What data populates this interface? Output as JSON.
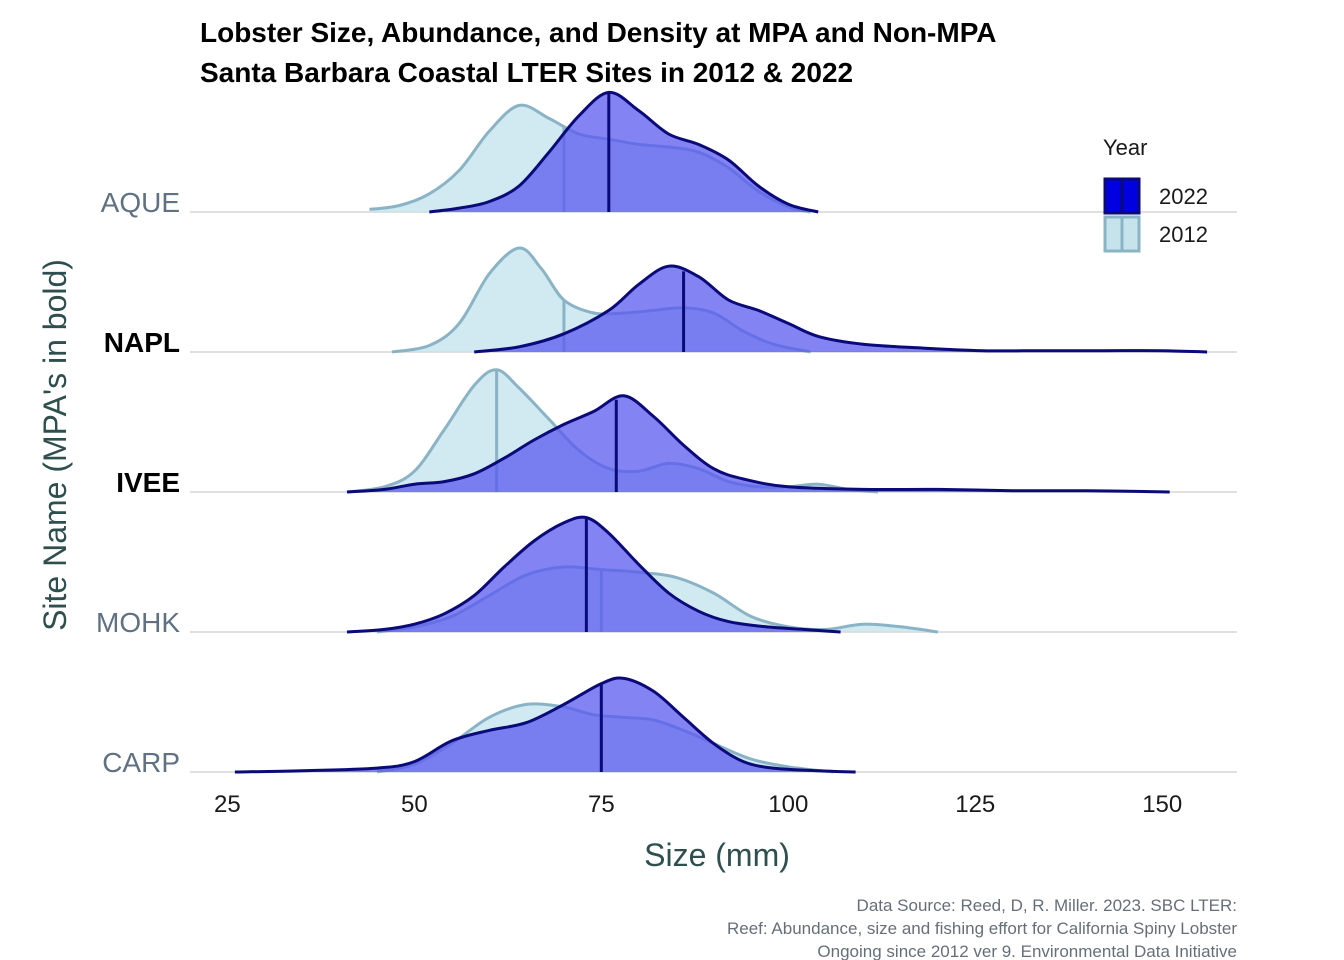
{
  "chart_data": {
    "type": "ridgeline-density",
    "title": [
      "Lobster Size, Abundance, and Density at MPA and Non-MPA",
      "Santa Barbara Coastal LTER Sites in 2012 & 2022"
    ],
    "xlabel": "Size (mm)",
    "ylabel": "Site Name (MPA's in bold)",
    "xlim": [
      20,
      160
    ],
    "x_ticks": [
      25,
      50,
      75,
      100,
      125,
      150
    ],
    "legend": {
      "title": "Year",
      "position": "top-right",
      "entries": [
        "2022",
        "2012"
      ]
    },
    "colors": {
      "2022_fill": "#5a5af0",
      "2022_line": "#0a0a78",
      "2022_key": "#0000e0",
      "2012_fill": "#c6e3ec",
      "2012_line": "#8ab4c6",
      "mpa_label": "#000000",
      "non_mpa_label": "#5f7183",
      "baseline": "#e0e0e0",
      "ylabel": "#2f4f4f",
      "caption": "#666f78"
    },
    "sites": [
      {
        "name": "AQUE",
        "mpa": false,
        "series": [
          {
            "year": "2012",
            "median": 70,
            "points": [
              [
                44,
                0.02
              ],
              [
                48,
                0.05
              ],
              [
                52,
                0.14
              ],
              [
                56,
                0.32
              ],
              [
                60,
                0.62
              ],
              [
                64,
                0.82
              ],
              [
                68,
                0.72
              ],
              [
                72,
                0.6
              ],
              [
                76,
                0.56
              ],
              [
                80,
                0.52
              ],
              [
                84,
                0.5
              ],
              [
                88,
                0.46
              ],
              [
                92,
                0.34
              ],
              [
                96,
                0.16
              ],
              [
                100,
                0.04
              ],
              [
                103,
                0
              ]
            ]
          },
          {
            "year": "2022",
            "median": 76,
            "points": [
              [
                52,
                0
              ],
              [
                56,
                0.03
              ],
              [
                60,
                0.08
              ],
              [
                64,
                0.2
              ],
              [
                68,
                0.46
              ],
              [
                72,
                0.74
              ],
              [
                76,
                0.92
              ],
              [
                80,
                0.78
              ],
              [
                84,
                0.6
              ],
              [
                88,
                0.52
              ],
              [
                92,
                0.4
              ],
              [
                96,
                0.2
              ],
              [
                100,
                0.06
              ],
              [
                104,
                0
              ]
            ]
          }
        ]
      },
      {
        "name": "NAPL",
        "mpa": true,
        "series": [
          {
            "year": "2012",
            "median": 70,
            "points": [
              [
                47,
                0
              ],
              [
                52,
                0.05
              ],
              [
                56,
                0.22
              ],
              [
                60,
                0.6
              ],
              [
                64,
                0.8
              ],
              [
                67,
                0.64
              ],
              [
                70,
                0.4
              ],
              [
                74,
                0.3
              ],
              [
                78,
                0.3
              ],
              [
                82,
                0.32
              ],
              [
                86,
                0.34
              ],
              [
                90,
                0.3
              ],
              [
                94,
                0.16
              ],
              [
                98,
                0.06
              ],
              [
                103,
                0
              ]
            ]
          },
          {
            "year": "2022",
            "median": 86,
            "points": [
              [
                58,
                0
              ],
              [
                64,
                0.04
              ],
              [
                70,
                0.14
              ],
              [
                76,
                0.32
              ],
              [
                80,
                0.52
              ],
              [
                84,
                0.66
              ],
              [
                88,
                0.58
              ],
              [
                92,
                0.4
              ],
              [
                96,
                0.32
              ],
              [
                100,
                0.22
              ],
              [
                104,
                0.12
              ],
              [
                110,
                0.06
              ],
              [
                118,
                0.03
              ],
              [
                126,
                0.01
              ],
              [
                134,
                0.01
              ],
              [
                142,
                0.01
              ],
              [
                150,
                0.01
              ],
              [
                156,
                0
              ]
            ]
          }
        ]
      },
      {
        "name": "IVEE",
        "mpa": true,
        "series": [
          {
            "year": "2012",
            "median": 61,
            "points": [
              [
                41,
                0
              ],
              [
                46,
                0.04
              ],
              [
                50,
                0.16
              ],
              [
                54,
                0.48
              ],
              [
                58,
                0.82
              ],
              [
                61,
                0.94
              ],
              [
                64,
                0.8
              ],
              [
                68,
                0.56
              ],
              [
                72,
                0.32
              ],
              [
                76,
                0.18
              ],
              [
                80,
                0.16
              ],
              [
                84,
                0.22
              ],
              [
                88,
                0.18
              ],
              [
                92,
                0.08
              ],
              [
                96,
                0.04
              ],
              [
                100,
                0.04
              ],
              [
                104,
                0.06
              ],
              [
                108,
                0.02
              ],
              [
                112,
                0
              ]
            ]
          },
          {
            "year": "2022",
            "median": 77,
            "points": [
              [
                41,
                0
              ],
              [
                46,
                0.02
              ],
              [
                50,
                0.06
              ],
              [
                54,
                0.08
              ],
              [
                58,
                0.14
              ],
              [
                62,
                0.26
              ],
              [
                66,
                0.4
              ],
              [
                70,
                0.52
              ],
              [
                74,
                0.62
              ],
              [
                78,
                0.74
              ],
              [
                82,
                0.58
              ],
              [
                86,
                0.36
              ],
              [
                90,
                0.18
              ],
              [
                94,
                0.1
              ],
              [
                100,
                0.04
              ],
              [
                110,
                0.02
              ],
              [
                120,
                0.02
              ],
              [
                130,
                0.01
              ],
              [
                140,
                0.01
              ],
              [
                151,
                0
              ]
            ]
          }
        ]
      },
      {
        "name": "MOHK",
        "mpa": false,
        "series": [
          {
            "year": "2012",
            "median": 75,
            "points": [
              [
                45,
                0
              ],
              [
                50,
                0.04
              ],
              [
                55,
                0.12
              ],
              [
                60,
                0.28
              ],
              [
                65,
                0.44
              ],
              [
                70,
                0.5
              ],
              [
                75,
                0.48
              ],
              [
                80,
                0.46
              ],
              [
                85,
                0.42
              ],
              [
                90,
                0.3
              ],
              [
                95,
                0.12
              ],
              [
                100,
                0.04
              ],
              [
                105,
                0.02
              ],
              [
                110,
                0.06
              ],
              [
                115,
                0.04
              ],
              [
                120,
                0
              ]
            ]
          },
          {
            "year": "2022",
            "median": 73,
            "points": [
              [
                41,
                0
              ],
              [
                46,
                0.02
              ],
              [
                50,
                0.06
              ],
              [
                54,
                0.14
              ],
              [
                58,
                0.28
              ],
              [
                62,
                0.5
              ],
              [
                66,
                0.7
              ],
              [
                70,
                0.84
              ],
              [
                73,
                0.88
              ],
              [
                76,
                0.76
              ],
              [
                80,
                0.52
              ],
              [
                84,
                0.3
              ],
              [
                88,
                0.16
              ],
              [
                92,
                0.08
              ],
              [
                97,
                0.04
              ],
              [
                102,
                0.02
              ],
              [
                107,
                0
              ]
            ]
          }
        ]
      },
      {
        "name": "CARP",
        "mpa": false,
        "series": [
          {
            "year": "2012",
            "median": 75,
            "points": [
              [
                45,
                0
              ],
              [
                50,
                0.06
              ],
              [
                55,
                0.22
              ],
              [
                60,
                0.42
              ],
              [
                65,
                0.52
              ],
              [
                70,
                0.5
              ],
              [
                74,
                0.44
              ],
              [
                78,
                0.42
              ],
              [
                82,
                0.4
              ],
              [
                86,
                0.32
              ],
              [
                90,
                0.22
              ],
              [
                95,
                0.1
              ],
              [
                100,
                0.04
              ],
              [
                106,
                0
              ]
            ]
          },
          {
            "year": "2022",
            "median": 75,
            "points": [
              [
                26,
                0
              ],
              [
                35,
                0.01
              ],
              [
                45,
                0.03
              ],
              [
                50,
                0.08
              ],
              [
                55,
                0.24
              ],
              [
                60,
                0.32
              ],
              [
                65,
                0.38
              ],
              [
                70,
                0.52
              ],
              [
                75,
                0.68
              ],
              [
                78,
                0.72
              ],
              [
                82,
                0.62
              ],
              [
                86,
                0.42
              ],
              [
                90,
                0.22
              ],
              [
                94,
                0.08
              ],
              [
                98,
                0.03
              ],
              [
                104,
                0.01
              ],
              [
                109,
                0
              ]
            ]
          }
        ]
      }
    ]
  },
  "caption": [
    "Data Source: Reed, D, R. Miller. 2023. SBC LTER:",
    "Reef: Abundance, size and fishing effort for California Spiny Lobster",
    "Ongoing since 2012 ver 9. Environmental Data Initiative"
  ]
}
